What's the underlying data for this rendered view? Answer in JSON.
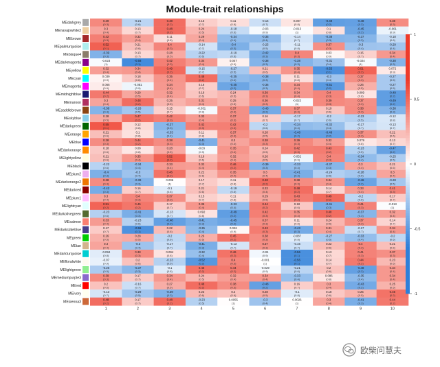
{
  "chart_data": {
    "type": "heatmap",
    "title": "Module-trait relationships",
    "rows": [
      {
        "name": "MEdarkgrey",
        "color": "#a9a9a9"
      },
      {
        "name": "MEnavajowhite2",
        "color": "#eecfa1"
      },
      {
        "name": "MEbrown",
        "color": "#a52a2a"
      },
      {
        "name": "MEpaleturquoise",
        "color": "#afeeee"
      },
      {
        "name": "MEbisque4",
        "color": "#8b7d6b"
      },
      {
        "name": "MEdarkmagenta",
        "color": "#8b008b"
      },
      {
        "name": "MEyellow",
        "color": "#ffff00"
      },
      {
        "name": "MEcyan",
        "color": "#00ffff"
      },
      {
        "name": "MEmagenta",
        "color": "#ff00ff"
      },
      {
        "name": "MEmidnightblue",
        "color": "#191970"
      },
      {
        "name": "MEmaroon",
        "color": "#b03060"
      },
      {
        "name": "MEsaddlebrown",
        "color": "#8b4513"
      },
      {
        "name": "MEskyblue",
        "color": "#87ceeb"
      },
      {
        "name": "MEdarkgreen",
        "color": "#006400"
      },
      {
        "name": "MEorange",
        "color": "#ffa500"
      },
      {
        "name": "MEblue",
        "color": "#0000ff"
      },
      {
        "name": "MEdarkorange",
        "color": "#ff8c00"
      },
      {
        "name": "MElightyellow",
        "color": "#ffffe0"
      },
      {
        "name": "MEblack",
        "color": "#000000"
      },
      {
        "name": "MEplum2",
        "color": "#eeaeee"
      },
      {
        "name": "MEdarkorange2",
        "color": "#ee7600"
      },
      {
        "name": "MEdarkred",
        "color": "#8b0000"
      },
      {
        "name": "MEplum1",
        "color": "#ffbbff"
      },
      {
        "name": "MElightcyan",
        "color": "#e0ffff"
      },
      {
        "name": "MEdarkolivegreen",
        "color": "#556b2f"
      },
      {
        "name": "MEsalmon",
        "color": "#fa8072"
      },
      {
        "name": "MEdarkslateblue",
        "color": "#483d8b"
      },
      {
        "name": "MEgreen",
        "color": "#00cd00"
      },
      {
        "name": "MEtan",
        "color": "#d2b48c"
      },
      {
        "name": "MEdarkturquoise",
        "color": "#00ced1"
      },
      {
        "name": "MEfloralwhite",
        "color": "#fffaf0"
      },
      {
        "name": "MElightgreen",
        "color": "#90ee90"
      },
      {
        "name": "MEmediumpurple3",
        "color": "#8968cd"
      },
      {
        "name": "MEred",
        "color": "#ff0000"
      },
      {
        "name": "MEivory",
        "color": "#fffff0"
      },
      {
        "name": "MEsienna3",
        "color": "#cd6839"
      }
    ],
    "columns": [
      "1",
      "2",
      "3",
      "4",
      "5",
      "6",
      "7",
      "8",
      "9",
      "10"
    ],
    "values": [
      [
        0.39,
        -0.21,
        0.48,
        0.16,
        0.11,
        -0.16,
        0.087,
        -0.49,
        -0.48,
        0.38
      ],
      [
        0.3,
        0.13,
        0.48,
        0.24,
        -0.18,
        -0.03,
        -0.013,
        0.1,
        -0.45,
        -0.061
      ],
      [
        0.42,
        0.32,
        0.11,
        0.29,
        -0.34,
        -0.35,
        -0.14,
        -0.38,
        -0.37,
        -0.18
      ],
      [
        0.52,
        0.21,
        0.4,
        -0.14,
        -0.4,
        -0.25,
        -0.11,
        0.37,
        -0.3,
        -0.29
      ],
      [
        -0.39,
        0.13,
        0.28,
        -0.22,
        -0.19,
        -0.42,
        0.4,
        0.03,
        0.15,
        0.34
      ],
      [
        -0.023,
        -0.58,
        0.42,
        0.34,
        0.047,
        -0.38,
        -0.38,
        -0.31,
        -0.024,
        -0.38
      ],
      [
        0.32,
        0.34,
        0.49,
        -0.15,
        -0.27,
        0.21,
        0.35,
        -0.55,
        0.51,
        0.072
      ],
      [
        0.039,
        0.18,
        0.35,
        0.48,
        -0.35,
        -0.38,
        0.11,
        -0.3,
        0.37,
        -0.27
      ],
      [
        0.065,
        -0.051,
        0.34,
        0.16,
        -0.45,
        -0.36,
        0.34,
        -0.51,
        0.26,
        -0.27
      ],
      [
        0.44,
        0.29,
        0.32,
        0.19,
        0.24,
        0.39,
        0.34,
        0.4,
        0.089,
        -0.49
      ],
      [
        0.3,
        0.48,
        0.25,
        0.31,
        0.25,
        0.36,
        -0.022,
        0.39,
        0.37,
        -0.49
      ],
      [
        -0.38,
        -0.28,
        0.15,
        -0.031,
        0.37,
        -0.43,
        0.37,
        0.19,
        0.38,
        -0.38
      ],
      [
        0.28,
        0.47,
        0.42,
        0.33,
        0.37,
        0.16,
        -0.17,
        -0.2,
        -0.23,
        -0.12
      ],
      [
        0.55,
        0.12,
        -0.37,
        0.42,
        0.42,
        -0.2,
        -0.34,
        -0.32,
        -0.17,
        -0.13
      ],
      [
        0.21,
        0.1,
        -0.33,
        0.11,
        0.37,
        0.28,
        -0.48,
        -0.48,
        0.37,
        0.21
      ],
      [
        0.38,
        0.44,
        0.38,
        -0.41,
        0.3,
        0.38,
        0.39,
        0.32,
        0.079,
        0.13
      ],
      [
        0.18,
        0.08,
        0.28,
        -0.03,
        0.35,
        0.24,
        0.42,
        0.43,
        -0.23,
        -0.47
      ],
      [
        0.21,
        0.35,
        0.52,
        0.19,
        0.32,
        0.26,
        -0.052,
        0.4,
        -0.34,
        -0.25
      ],
      [
        -0.22,
        -0.34,
        0.33,
        0.32,
        0.46,
        -0.39,
        -0.33,
        -0.37,
        0.3,
        0.21
      ],
      [
        -0.4,
        -0.3,
        0.46,
        0.22,
        0.35,
        0.3,
        -0.41,
        -0.24,
        -0.28,
        0.3
      ],
      [
        0.38,
        -0.39,
        0.006,
        0.17,
        0.11,
        0.48,
        0.38,
        0.34,
        -0.46,
        -0.28
      ],
      [
        -0.42,
        0.16,
        -0.1,
        0.21,
        -0.19,
        0.33,
        0.48,
        0.14,
        0.33,
        0.41
      ],
      [
        0.3,
        0.4,
        0.37,
        0.15,
        0.11,
        0.29,
        0.43,
        0.49,
        -0.2,
        0.17
      ],
      [
        0.51,
        0.45,
        0.17,
        0.35,
        -0.33,
        0.44,
        0.18,
        -0.41,
        0.41,
        -0.013
      ],
      [
        -0.23,
        -0.41,
        -0.13,
        0.092,
        -0.49,
        0.42,
        0.35,
        0.48,
        -0.37,
        0.32
      ],
      [
        0.33,
        -0.23,
        -0.48,
        -0.41,
        -0.45,
        0.37,
        0.11,
        0.24,
        0.37,
        0.14
      ],
      [
        0.17,
        -0.55,
        0.22,
        -0.35,
        0.026,
        0.43,
        -0.43,
        0.31,
        -0.17,
        0.34
      ],
      [
        0.26,
        0.28,
        -0.2,
        0.26,
        0.45,
        0.38,
        -0.087,
        -0.27,
        -0.33,
        -0.2
      ],
      [
        0.3,
        -0.3,
        -0.17,
        -0.41,
        -0.13,
        0.37,
        -0.16,
        0.22,
        0.4,
        0.21
      ],
      [
        -0.094,
        0.38,
        0.094,
        -0.32,
        0.46,
        -0.04,
        -0.56,
        0.13,
        0.41,
        0.37
      ],
      [
        -0.07,
        0.2,
        -0.23,
        -0.52,
        0.4,
        -0.001,
        -0.56,
        0.14,
        0.44,
        0.23
      ],
      [
        -0.26,
        -0.37,
        -0.1,
        0.46,
        0.44,
        -0.029,
        -0.21,
        0.2,
        -0.48,
        0.34
      ],
      [
        0.39,
        0.17,
        0.34,
        0.24,
        0.32,
        0.34,
        -0.33,
        0.086,
        -0.35,
        0.34
      ],
      [
        0.2,
        -0.16,
        0.27,
        0.48,
        0.38,
        -0.48,
        0.16,
        0.3,
        -0.43,
        0.25
      ],
      [
        -0.13,
        -0.29,
        -0.39,
        0.23,
        0.2,
        0.28,
        -0.1,
        0.18,
        0.25,
        0.46
      ],
      [
        0.48,
        0.17,
        0.48,
        -0.23,
        0.0055,
        -0.3,
        0.0026,
        0.3,
        -0.41,
        0.44
      ]
    ],
    "pvalues": [
      [
        "(0.3)",
        "(0.6)",
        "(0.2)",
        "(0.7)",
        "(0.8)",
        "(0.7)",
        "(0.8)",
        "(0.2)",
        "(0.2)",
        "(0.3)"
      ],
      [
        "(0.4)",
        "(0.7)",
        "(0.2)",
        "(0.5)",
        "(0.6)",
        "(0.9)",
        "(1)",
        "(0.8)",
        "(0.2)",
        "(0.9)"
      ],
      [
        "(0.3)",
        "(0.4)",
        "(0.8)",
        "(0.4)",
        "(0.4)",
        "(0.4)",
        "(0.7)",
        "(0.3)",
        "(0.3)",
        "(0.6)"
      ],
      [
        "(0.1)",
        "(0.6)",
        "(0.3)",
        "(0.7)",
        "(0.3)",
        "(0.5)",
        "(0.8)",
        "(0.3)",
        "(0.4)",
        "(0.4)"
      ],
      [
        "(0.3)",
        "(0.7)",
        "(0.5)",
        "(0.6)",
        "(0.6)",
        "(0.3)",
        "(0.3)",
        "(0.9)",
        "(0.7)",
        "(0.4)"
      ],
      [
        "(1)",
        "(0.1)",
        "(0.3)",
        "(0.4)",
        "(0.9)",
        "(0.3)",
        "(0.3)",
        "(0.4)",
        "(1)",
        "(0.3)"
      ],
      [
        "(0.4)",
        "(0.4)",
        "(0.2)",
        "(0.7)",
        "(0.5)",
        "(0.6)",
        "(0.4)",
        "(0.1)",
        "(0.2)",
        "(0.9)"
      ],
      [
        "(0.9)",
        "(0.6)",
        "(0.4)",
        "(0.2)",
        "(0.4)",
        "(0.3)",
        "(0.8)",
        "(0.4)",
        "(0.3)",
        "(0.5)"
      ],
      [
        "(0.9)",
        "(0.9)",
        "(0.4)",
        "(0.7)",
        "(0.2)",
        "(0.3)",
        "(0.4)",
        "(0.2)",
        "(0.5)",
        "(0.5)"
      ],
      [
        "(0.2)",
        "(0.5)",
        "(0.4)",
        "(0.6)",
        "(0.5)",
        "(0.3)",
        "(0.4)",
        "(0.3)",
        "(0.8)",
        "(0.2)"
      ],
      [
        "(0.4)",
        "(0.2)",
        "(0.5)",
        "(0.4)",
        "(0.5)",
        "(0.3)",
        "(1)",
        "(0.3)",
        "(0.3)",
        "(0.2)"
      ],
      [
        "(0.3)",
        "(0.5)",
        "(0.7)",
        "(0.9)",
        "(0.3)",
        "(0.2)",
        "(0.3)",
        "(0.6)",
        "(0.3)",
        "(0.3)"
      ],
      [
        "(0.5)",
        "(0.2)",
        "(0.3)",
        "(0.4)",
        "(0.3)",
        "(0.7)",
        "(0.7)",
        "(0.6)",
        "(0.5)",
        "(0.8)"
      ],
      [
        "(0.1)",
        "(0.8)",
        "(0.3)",
        "(0.3)",
        "(0.3)",
        "(0.6)",
        "(0.4)",
        "(0.4)",
        "(0.7)",
        "(0.7)"
      ],
      [
        "(0.6)",
        "(0.8)",
        "(0.4)",
        "(0.8)",
        "(0.3)",
        "(0.5)",
        "(0.2)",
        "(0.2)",
        "(0.3)",
        "(0.6)"
      ],
      [
        "(0.3)",
        "(0.2)",
        "(0.3)",
        "(0.3)",
        "(0.4)",
        "(0.3)",
        "(0.3)",
        "(0.4)",
        "(0.8)",
        "(0.7)"
      ],
      [
        "(0.6)",
        "(0.8)",
        "(0.5)",
        "(0.9)",
        "(0.4)",
        "(0.5)",
        "(0.3)",
        "(0.2)",
        "(0.5)",
        "(0.2)"
      ],
      [
        "(0.6)",
        "(0.4)",
        "(0.2)",
        "(0.6)",
        "(0.4)",
        "(0.5)",
        "(0.9)",
        "(0.3)",
        "(0.4)",
        "(0.5)"
      ],
      [
        "(0.6)",
        "(0.4)",
        "(0.4)",
        "(0.4)",
        "(0.2)",
        "(0.3)",
        "(0.4)",
        "(0.3)",
        "(0.4)",
        "(0.6)"
      ],
      [
        "(0.3)",
        "(0.4)",
        "(0.2)",
        "(0.6)",
        "(0.4)",
        "(0.4)",
        "(0.3)",
        "(0.5)",
        "(0.5)",
        "(0.4)"
      ],
      [
        "(0.3)",
        "(0.3)",
        "(1)",
        "(0.7)",
        "(0.8)",
        "(0.2)",
        "(0.3)",
        "(0.4)",
        "(0.2)",
        "(0.5)"
      ],
      [
        "(0.3)",
        "(0.7)",
        "(0.8)",
        "(0.6)",
        "(0.6)",
        "(0.4)",
        "(0.2)",
        "(0.7)",
        "(0.4)",
        "(0.3)"
      ],
      [
        "(0.4)",
        "(0.3)",
        "(0.3)",
        "(0.7)",
        "(0.8)",
        "(0.5)",
        "(0.2)",
        "(0.2)",
        "(0.6)",
        "(0.7)"
      ],
      [
        "(0.2)",
        "(0.2)",
        "(0.7)",
        "(0.4)",
        "(0.4)",
        "(0.2)",
        "(0.6)",
        "(0.3)",
        "(0.3)",
        "(1)"
      ],
      [
        "(0.6)",
        "(0.3)",
        "(0.7)",
        "(0.8)",
        "(0.2)",
        "(0.3)",
        "(0.4)",
        "(0.2)",
        "(0.3)",
        "(0.4)"
      ],
      [
        "(0.4)",
        "(0.6)",
        "(0.2)",
        "(0.3)",
        "(0.2)",
        "(0.3)",
        "(0.8)",
        "(0.5)",
        "(0.3)",
        "(0.7)"
      ],
      [
        "(0.7)",
        "(0.1)",
        "(0.6)",
        "(0.4)",
        "(0.9)",
        "(0.3)",
        "(0.3)",
        "(0.4)",
        "(0.7)",
        "(0.4)"
      ],
      [
        "(0.5)",
        "(0.5)",
        "(0.6)",
        "(0.5)",
        "(0.2)",
        "(0.3)",
        "(0.8)",
        "(0.5)",
        "(0.4)",
        "(0.6)"
      ],
      [
        "(0.4)",
        "(0.4)",
        "(0.7)",
        "(0.3)",
        "(0.7)",
        "(0.3)",
        "(0.7)",
        "(0.6)",
        "(0.3)",
        "(0.6)"
      ],
      [
        "(0.8)",
        "(0.3)",
        "(0.8)",
        "(0.4)",
        "(0.2)",
        "(0.9)",
        "(0.1)",
        "(0.7)",
        "(0.3)",
        "(0.3)"
      ],
      [
        "(0.9)",
        "(0.6)",
        "(0.5)",
        "(0.2)",
        "(0.3)",
        "(1)",
        "(0.1)",
        "(0.7)",
        "(0.2)",
        "(0.6)"
      ],
      [
        "(0.5)",
        "(0.3)",
        "(0.8)",
        "(0.2)",
        "(0.2)",
        "(0.9)",
        "(0.6)",
        "(0.6)",
        "(0.2)",
        "(0.4)"
      ],
      [
        "(0.3)",
        "(0.7)",
        "(0.4)",
        "(0.5)",
        "(0.4)",
        "(0.4)",
        "(0.4)",
        "(0.8)",
        "(0.4)",
        "(0.4)"
      ],
      [
        "(0.6)",
        "(0.7)",
        "(0.5)",
        "(0.2)",
        "(0.3)",
        "(0.2)",
        "(0.7)",
        "(0.4)",
        "(0.2)",
        "(0.5)"
      ],
      [
        "(0.7)",
        "(0.5)",
        "(0.3)",
        "(0.6)",
        "(0.6)",
        "(0.5)",
        "(0.8)",
        "(0.6)",
        "(0.5)",
        "(0.2)"
      ],
      [
        "(0.2)",
        "(0.7)",
        "(0.2)",
        "(0.5)",
        "(1)",
        "(0.4)",
        "(1)",
        "(0.4)",
        "(0.3)",
        "(0.2)"
      ]
    ],
    "legend": {
      "ticks": [
        "1",
        "0.5",
        "0",
        "-0.5",
        "-1"
      ],
      "range": [
        -1,
        1
      ],
      "colors": {
        "negative": "#2e7fd9",
        "zero": "#ffffff",
        "positive": "#ee3b2a"
      }
    }
  },
  "watermark": {
    "text": "欧柴问慧夫"
  }
}
